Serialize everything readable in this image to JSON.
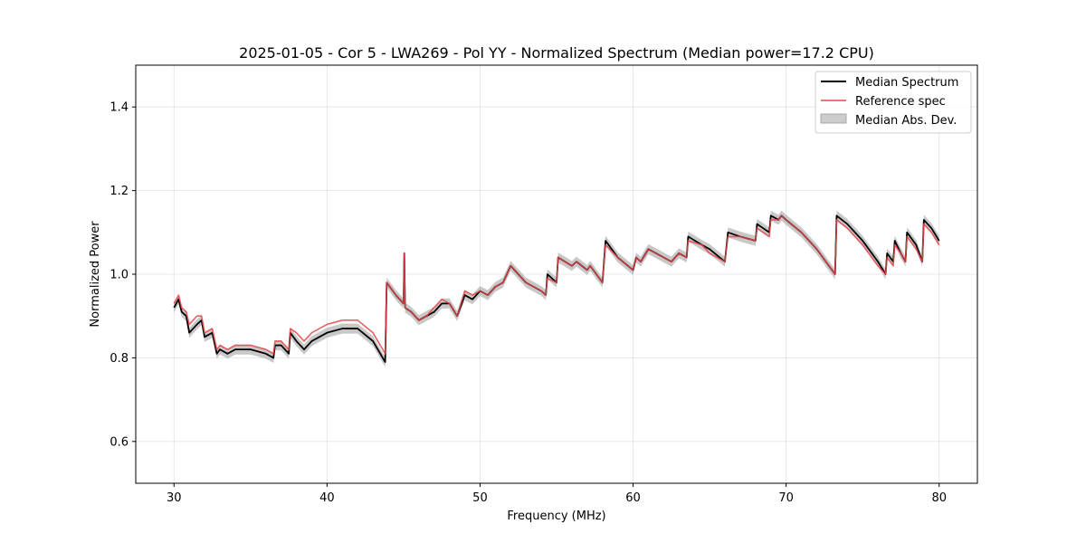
{
  "chart_data": {
    "type": "line",
    "title": "2025-01-05 - Cor 5 - LWA269 - Pol YY - Normalized Spectrum (Median power=17.2 CPU)",
    "xlabel": "Frequency (MHz)",
    "ylabel": "Normalized Power",
    "xlim": [
      27.5,
      82.5
    ],
    "ylim": [
      0.5,
      1.5
    ],
    "xticks": [
      30,
      40,
      50,
      60,
      70,
      80
    ],
    "yticks": [
      0.6,
      0.8,
      1.0,
      1.2,
      1.4
    ],
    "xtick_labels": [
      "30",
      "40",
      "50",
      "60",
      "70",
      "80"
    ],
    "ytick_labels": [
      "0.6",
      "0.8",
      "1.0",
      "1.2",
      "1.4"
    ],
    "grid": true,
    "legend_position": "top-right",
    "colors": {
      "median": "#000000",
      "reference": "#e8474a",
      "mad": "#b0b0b0"
    },
    "legend": [
      {
        "label": "Median Spectrum",
        "kind": "line",
        "color": "#000000"
      },
      {
        "label": "Reference spec",
        "kind": "line",
        "color": "#e8474a"
      },
      {
        "label": "Median Abs. Dev.",
        "kind": "patch",
        "color": "#b0b0b0"
      }
    ],
    "band_halfwidth": 0.012,
    "series": [
      {
        "name": "Median Spectrum",
        "x": [
          30.0,
          30.3,
          30.5,
          30.8,
          31.0,
          31.5,
          31.8,
          32.0,
          32.5,
          32.8,
          33.0,
          33.5,
          34.0,
          35.0,
          36.0,
          36.5,
          36.6,
          37.0,
          37.5,
          37.6,
          38.0,
          38.5,
          39.0,
          40.0,
          41.0,
          42.0,
          43.0,
          43.8,
          43.9,
          44.5,
          45.0,
          45.05,
          45.1,
          45.5,
          46.0,
          46.5,
          47.0,
          47.5,
          48.0,
          48.5,
          49.0,
          49.5,
          50.0,
          50.5,
          51.0,
          51.5,
          52.0,
          52.5,
          53.0,
          54.0,
          54.3,
          54.4,
          55.0,
          55.1,
          56.0,
          56.3,
          57.0,
          57.2,
          58.0,
          58.2,
          59.0,
          60.0,
          60.2,
          60.5,
          61.0,
          62.0,
          62.5,
          63.0,
          63.5,
          63.6,
          64.5,
          65.0,
          66.0,
          66.2,
          67.0,
          68.0,
          68.1,
          68.9,
          69.0,
          69.5,
          69.7,
          70.0,
          71.0,
          72.0,
          73.2,
          73.3,
          74.0,
          75.0,
          76.0,
          76.5,
          76.6,
          77.0,
          77.1,
          77.5,
          77.8,
          77.9,
          78.5,
          78.9,
          79.0,
          79.5,
          80.0
        ],
        "y": [
          0.92,
          0.94,
          0.91,
          0.9,
          0.86,
          0.88,
          0.89,
          0.85,
          0.86,
          0.81,
          0.82,
          0.81,
          0.82,
          0.82,
          0.81,
          0.8,
          0.83,
          0.83,
          0.81,
          0.86,
          0.84,
          0.82,
          0.84,
          0.86,
          0.87,
          0.87,
          0.84,
          0.79,
          0.98,
          0.95,
          0.93,
          1.05,
          0.92,
          0.91,
          0.89,
          0.9,
          0.91,
          0.93,
          0.93,
          0.9,
          0.95,
          0.94,
          0.96,
          0.95,
          0.97,
          0.98,
          1.02,
          1.0,
          0.98,
          0.96,
          0.95,
          1.0,
          0.98,
          1.04,
          1.02,
          1.03,
          1.01,
          1.02,
          0.98,
          1.08,
          1.04,
          1.01,
          1.04,
          1.03,
          1.06,
          1.04,
          1.03,
          1.05,
          1.04,
          1.09,
          1.07,
          1.06,
          1.03,
          1.1,
          1.09,
          1.08,
          1.12,
          1.1,
          1.14,
          1.13,
          1.14,
          1.13,
          1.1,
          1.06,
          1.0,
          1.14,
          1.12,
          1.08,
          1.03,
          1.0,
          1.05,
          1.03,
          1.08,
          1.05,
          1.03,
          1.1,
          1.07,
          1.03,
          1.13,
          1.11,
          1.08
        ]
      },
      {
        "name": "Reference spec",
        "x": [
          30.0,
          30.3,
          30.5,
          30.8,
          31.0,
          31.5,
          31.8,
          32.0,
          32.5,
          32.8,
          33.0,
          33.5,
          34.0,
          35.0,
          36.0,
          36.5,
          36.6,
          37.0,
          37.5,
          37.6,
          38.0,
          38.5,
          39.0,
          40.0,
          41.0,
          42.0,
          43.0,
          43.8,
          43.9,
          44.5,
          45.0,
          45.05,
          45.1,
          45.5,
          46.0,
          46.5,
          47.0,
          47.5,
          48.0,
          48.5,
          49.0,
          49.5,
          50.0,
          50.5,
          51.0,
          51.5,
          52.0,
          52.5,
          53.0,
          54.0,
          54.3,
          54.4,
          55.0,
          55.1,
          56.0,
          56.3,
          57.0,
          57.2,
          58.0,
          58.2,
          59.0,
          60.0,
          60.2,
          60.5,
          61.0,
          62.0,
          62.5,
          63.0,
          63.5,
          63.6,
          64.5,
          65.0,
          66.0,
          66.2,
          67.0,
          68.0,
          68.1,
          68.9,
          69.0,
          69.5,
          69.7,
          70.0,
          71.0,
          72.0,
          73.2,
          73.3,
          74.0,
          75.0,
          76.0,
          76.5,
          76.6,
          77.0,
          77.1,
          77.5,
          77.8,
          77.9,
          78.5,
          78.9,
          79.0,
          79.5,
          80.0
        ],
        "y": [
          0.93,
          0.95,
          0.92,
          0.91,
          0.88,
          0.9,
          0.9,
          0.86,
          0.87,
          0.82,
          0.83,
          0.82,
          0.83,
          0.83,
          0.82,
          0.81,
          0.84,
          0.84,
          0.82,
          0.87,
          0.86,
          0.84,
          0.86,
          0.88,
          0.89,
          0.89,
          0.86,
          0.81,
          0.98,
          0.95,
          0.93,
          1.05,
          0.92,
          0.91,
          0.89,
          0.9,
          0.92,
          0.94,
          0.93,
          0.9,
          0.96,
          0.95,
          0.96,
          0.95,
          0.97,
          0.98,
          1.02,
          1.0,
          0.98,
          0.96,
          0.95,
          0.99,
          0.98,
          1.04,
          1.02,
          1.03,
          1.01,
          1.02,
          0.98,
          1.07,
          1.04,
          1.01,
          1.04,
          1.03,
          1.06,
          1.04,
          1.03,
          1.05,
          1.04,
          1.08,
          1.07,
          1.05,
          1.03,
          1.09,
          1.09,
          1.08,
          1.11,
          1.09,
          1.13,
          1.13,
          1.14,
          1.13,
          1.1,
          1.06,
          1.0,
          1.13,
          1.11,
          1.07,
          1.02,
          1.0,
          1.04,
          1.02,
          1.07,
          1.05,
          1.03,
          1.09,
          1.06,
          1.03,
          1.12,
          1.1,
          1.07
        ]
      }
    ]
  }
}
